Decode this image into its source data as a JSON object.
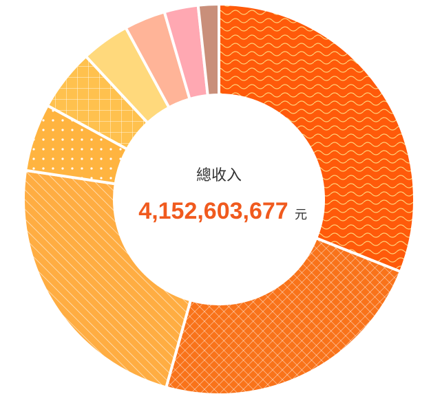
{
  "chart_data": {
    "type": "donut",
    "center_label": "總收入",
    "total": "4,152,603,677",
    "unit": "元",
    "values": [
      31,
      23.3,
      23,
      5.6,
      5.1,
      4,
      3.4,
      2.8,
      1.7
    ],
    "colors": [
      "#ff5a0a",
      "#f9731a",
      "#ffad42",
      "#ffb440",
      "#ffc14e",
      "#ffd97c",
      "#ffb498",
      "#ffa8b2",
      "#c98f7a"
    ]
  }
}
